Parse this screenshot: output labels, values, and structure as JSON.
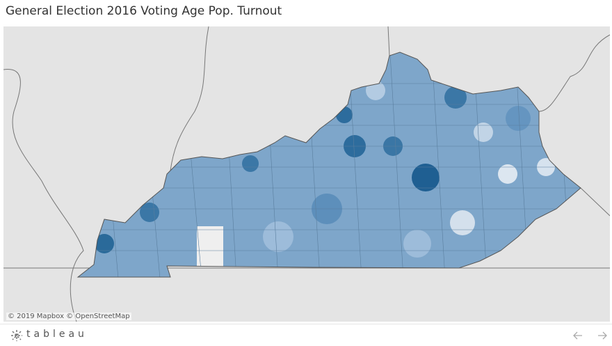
{
  "header": {
    "title": "General Election 2016 Voting Age Pop. Turnout"
  },
  "map": {
    "attribution": "© 2019 Mapbox © OpenStreetMap"
  },
  "footer": {
    "logo": "tableau"
  }
}
